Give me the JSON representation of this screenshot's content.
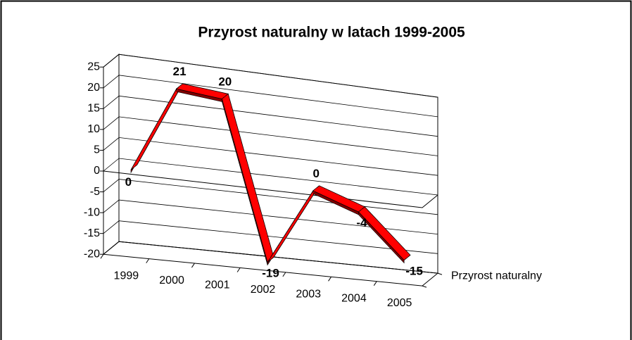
{
  "chart_data": {
    "type": "line",
    "title": "Przyrost naturalny w latach 1999-2005",
    "categories": [
      "1999",
      "2000",
      "2001",
      "2002",
      "2003",
      "2004",
      "2005"
    ],
    "series": [
      {
        "name": "Przyrost naturalny",
        "color": "#ff0000",
        "values": [
          0,
          21,
          20,
          -19,
          0,
          -4,
          -15
        ]
      }
    ],
    "ylim": [
      -20,
      25
    ],
    "yticks": [
      -20,
      -15,
      -10,
      -5,
      0,
      5,
      10,
      15,
      20,
      25
    ],
    "grid": true
  }
}
